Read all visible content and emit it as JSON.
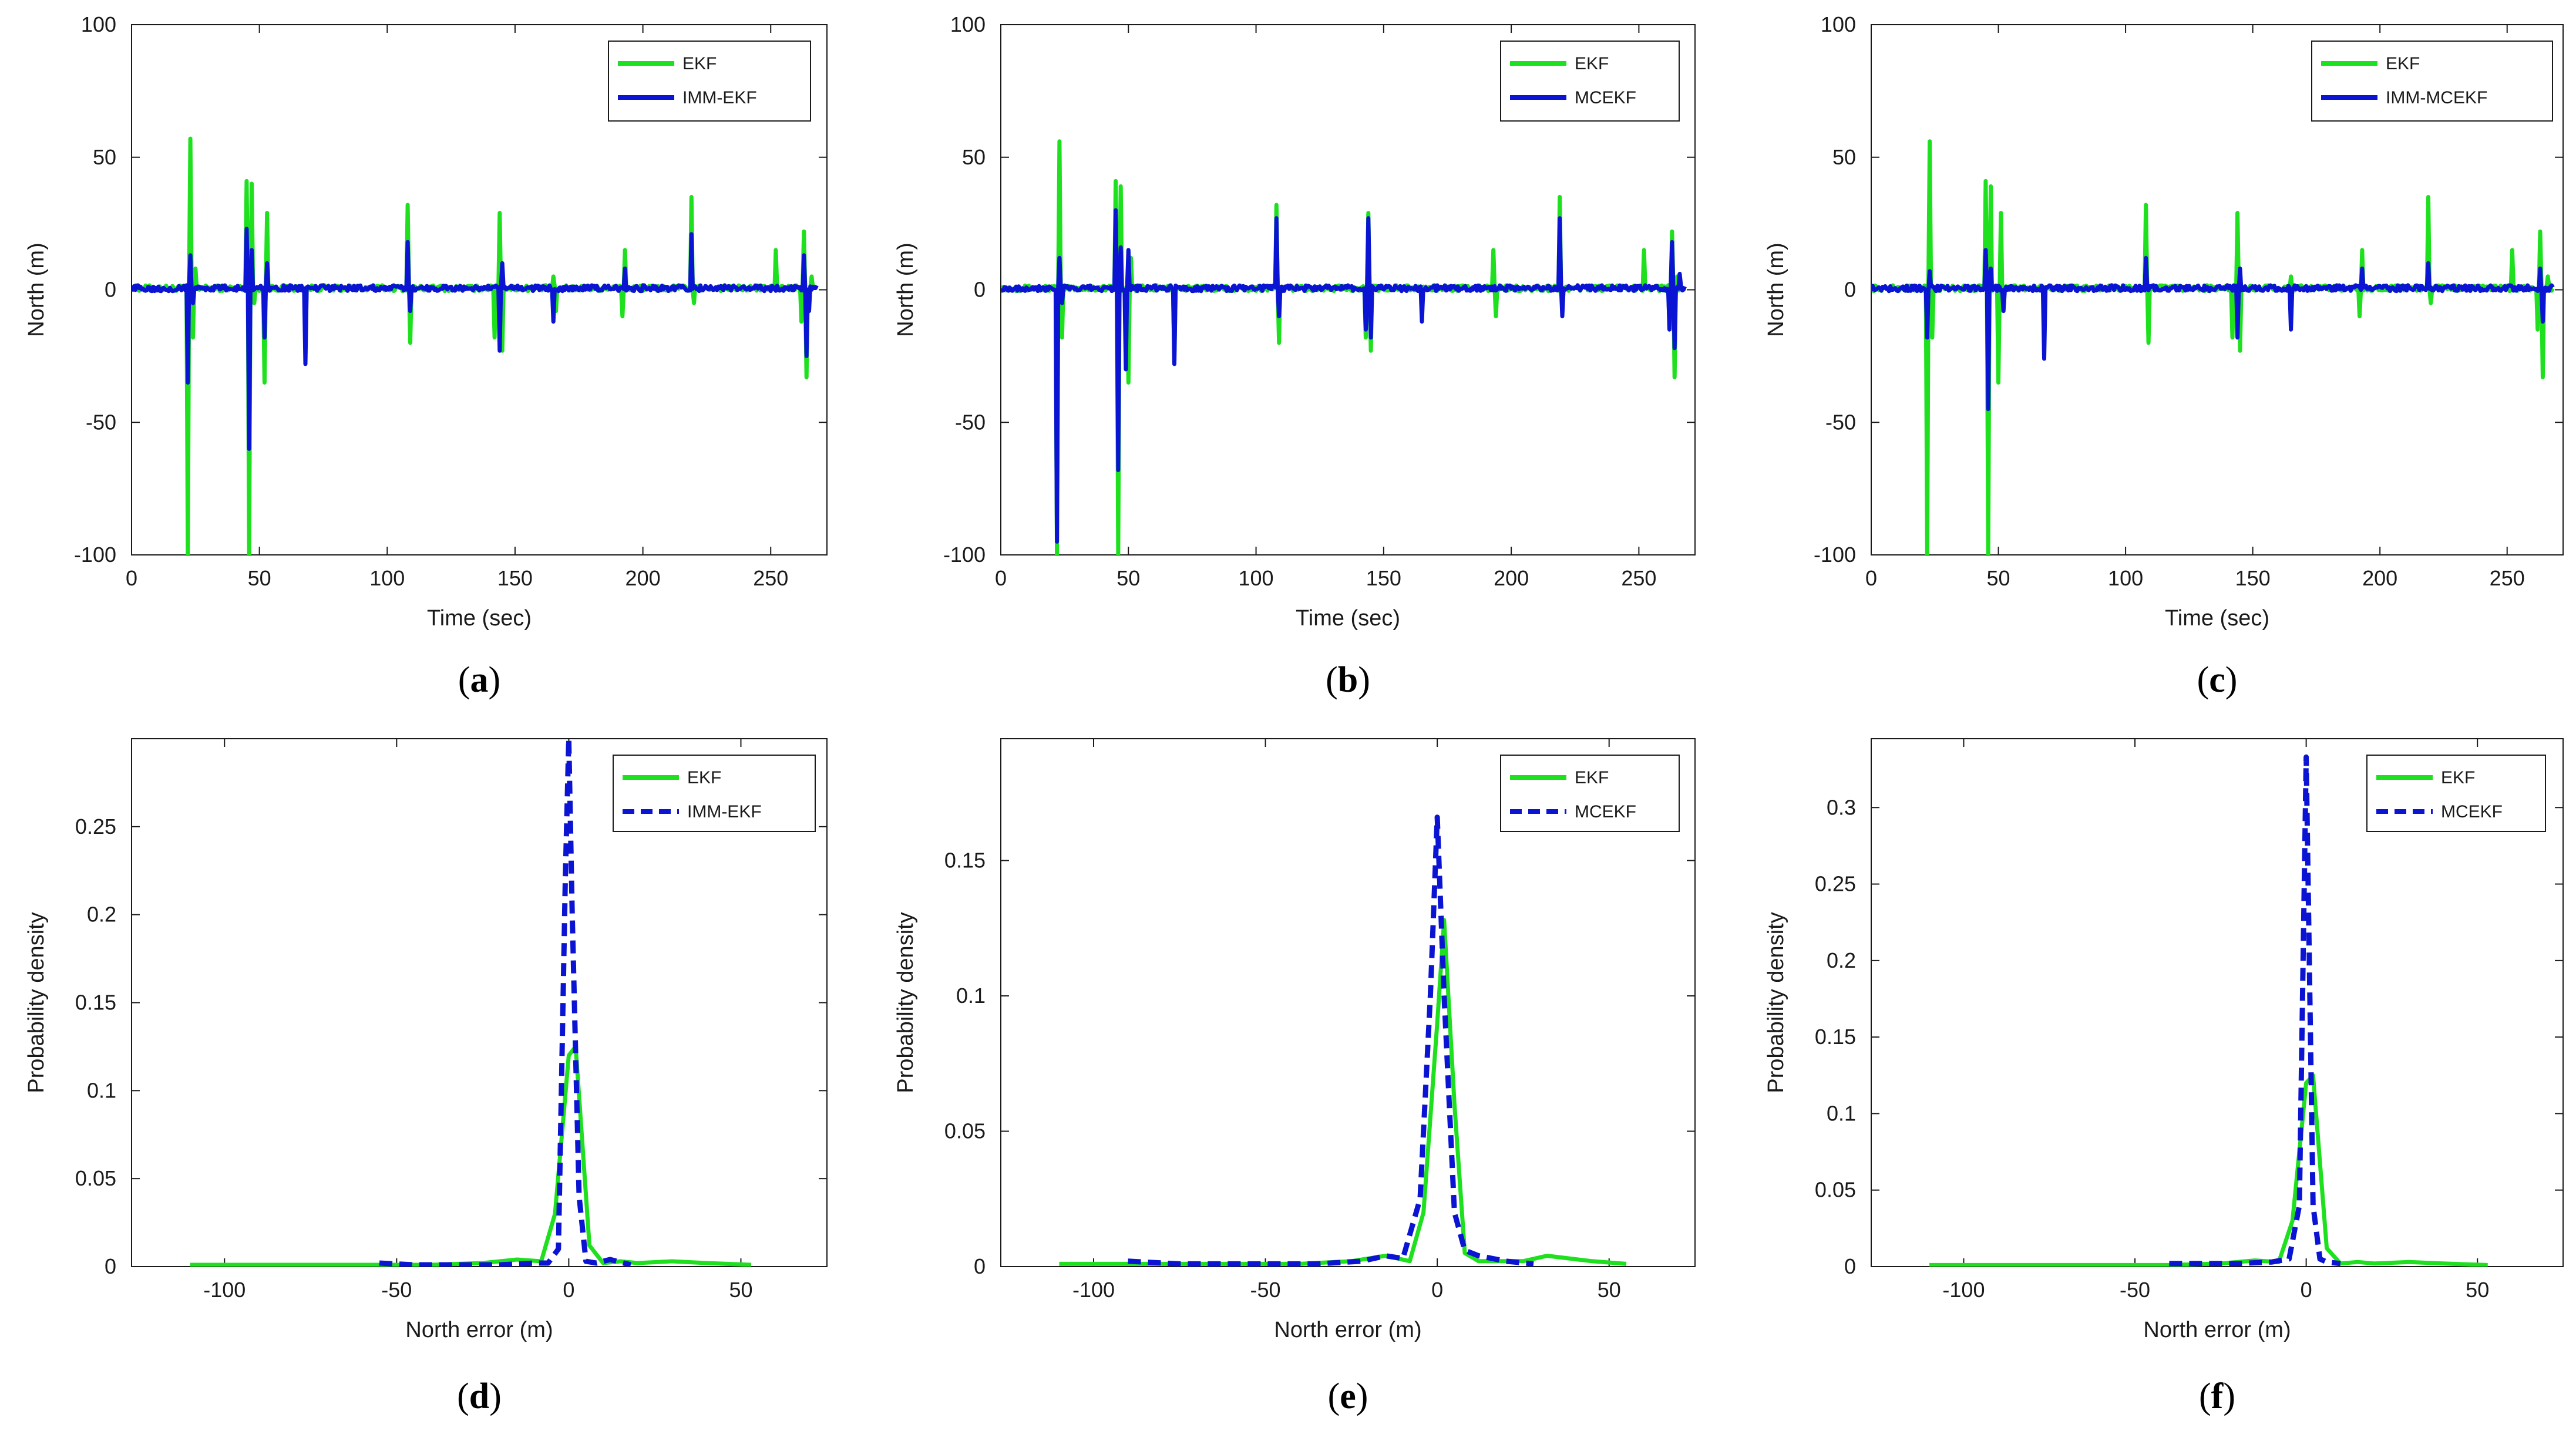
{
  "figure": {
    "panels": [
      "a",
      "b",
      "c",
      "d",
      "e",
      "f"
    ]
  },
  "colors": {
    "ekf": "#1ee01e",
    "filter": "#0a14d2",
    "axis": "#1a1a1a"
  },
  "chart_data": [
    {
      "id": "a",
      "type": "line",
      "caption": "a",
      "xlabel": "Time (sec)",
      "ylabel": "North (m)",
      "xlim": [
        0,
        272
      ],
      "ylim": [
        -100,
        100
      ],
      "xticks": [
        0,
        50,
        100,
        150,
        200,
        250
      ],
      "yticks": [
        -100,
        -50,
        0,
        50,
        100
      ],
      "legend": "top-right",
      "series": [
        {
          "name": "EKF",
          "style": "solid",
          "spikes": [
            [
              22,
              -100
            ],
            [
              23,
              57
            ],
            [
              24,
              -18
            ],
            [
              25,
              8
            ],
            [
              45,
              41
            ],
            [
              46,
              -100
            ],
            [
              47,
              40
            ],
            [
              48,
              -5
            ],
            [
              52,
              -35
            ],
            [
              53,
              29
            ],
            [
              68,
              -15
            ],
            [
              108,
              32
            ],
            [
              109,
              -20
            ],
            [
              142,
              -18
            ],
            [
              144,
              29
            ],
            [
              145,
              -23
            ],
            [
              165,
              5
            ],
            [
              166,
              -8
            ],
            [
              192,
              -10
            ],
            [
              193,
              15
            ],
            [
              219,
              35
            ],
            [
              220,
              -5
            ],
            [
              252,
              15
            ],
            [
              262,
              -12
            ],
            [
              263,
              22
            ],
            [
              264,
              -33
            ],
            [
              266,
              5
            ]
          ]
        },
        {
          "name": "IMM-EKF",
          "style": "solid",
          "spikes": [
            [
              22,
              -35
            ],
            [
              23,
              13
            ],
            [
              24,
              -5
            ],
            [
              45,
              23
            ],
            [
              46,
              -60
            ],
            [
              47,
              15
            ],
            [
              52,
              -18
            ],
            [
              53,
              10
            ],
            [
              68,
              -28
            ],
            [
              108,
              18
            ],
            [
              109,
              -8
            ],
            [
              144,
              -23
            ],
            [
              145,
              10
            ],
            [
              165,
              -12
            ],
            [
              193,
              8
            ],
            [
              219,
              21
            ],
            [
              263,
              13
            ],
            [
              264,
              -25
            ],
            [
              265,
              -8
            ]
          ]
        }
      ]
    },
    {
      "id": "b",
      "type": "line",
      "caption": "b",
      "xlabel": "Time (sec)",
      "ylabel": "North (m)",
      "xlim": [
        0,
        272
      ],
      "ylim": [
        -100,
        100
      ],
      "xticks": [
        0,
        50,
        100,
        150,
        200,
        250
      ],
      "yticks": [
        -100,
        -50,
        0,
        50,
        100
      ],
      "legend": "top-right",
      "series": [
        {
          "name": "EKF",
          "style": "solid",
          "spikes": [
            [
              22,
              -100
            ],
            [
              23,
              56
            ],
            [
              24,
              -18
            ],
            [
              45,
              41
            ],
            [
              46,
              -100
            ],
            [
              47,
              39
            ],
            [
              50,
              -35
            ],
            [
              51,
              12
            ],
            [
              68,
              -25
            ],
            [
              108,
              32
            ],
            [
              109,
              -20
            ],
            [
              143,
              -18
            ],
            [
              144,
              29
            ],
            [
              145,
              -23
            ],
            [
              193,
              15
            ],
            [
              194,
              -10
            ],
            [
              219,
              35
            ],
            [
              220,
              -5
            ],
            [
              252,
              15
            ],
            [
              262,
              -15
            ],
            [
              263,
              22
            ],
            [
              264,
              -33
            ],
            [
              265,
              5
            ]
          ]
        },
        {
          "name": "MCEKF",
          "style": "solid",
          "spikes": [
            [
              22,
              -95
            ],
            [
              23,
              12
            ],
            [
              24,
              -5
            ],
            [
              45,
              30
            ],
            [
              46,
              -68
            ],
            [
              47,
              16
            ],
            [
              49,
              -30
            ],
            [
              50,
              15
            ],
            [
              68,
              -28
            ],
            [
              108,
              27
            ],
            [
              109,
              -10
            ],
            [
              143,
              -15
            ],
            [
              144,
              27
            ],
            [
              145,
              -18
            ],
            [
              165,
              -12
            ],
            [
              219,
              27
            ],
            [
              220,
              -10
            ],
            [
              262,
              -15
            ],
            [
              263,
              18
            ],
            [
              264,
              -22
            ],
            [
              266,
              6
            ]
          ]
        }
      ]
    },
    {
      "id": "c",
      "type": "line",
      "caption": "c",
      "xlabel": "Time (sec)",
      "ylabel": "North (m)",
      "xlim": [
        0,
        272
      ],
      "ylim": [
        -100,
        100
      ],
      "xticks": [
        0,
        50,
        100,
        150,
        200,
        250
      ],
      "yticks": [
        -100,
        -50,
        0,
        50,
        100
      ],
      "legend": "top-right",
      "series": [
        {
          "name": "EKF",
          "style": "solid",
          "spikes": [
            [
              22,
              -100
            ],
            [
              23,
              56
            ],
            [
              24,
              -18
            ],
            [
              45,
              41
            ],
            [
              46,
              -100
            ],
            [
              47,
              39
            ],
            [
              50,
              -35
            ],
            [
              51,
              29
            ],
            [
              68,
              -15
            ],
            [
              108,
              32
            ],
            [
              109,
              -20
            ],
            [
              142,
              -18
            ],
            [
              144,
              29
            ],
            [
              145,
              -23
            ],
            [
              165,
              5
            ],
            [
              192,
              -10
            ],
            [
              193,
              15
            ],
            [
              219,
              35
            ],
            [
              220,
              -5
            ],
            [
              252,
              15
            ],
            [
              262,
              -15
            ],
            [
              263,
              22
            ],
            [
              264,
              -33
            ],
            [
              266,
              5
            ]
          ]
        },
        {
          "name": "IMM-MCEKF",
          "style": "solid",
          "spikes": [
            [
              22,
              -18
            ],
            [
              23,
              7
            ],
            [
              45,
              15
            ],
            [
              46,
              -45
            ],
            [
              47,
              8
            ],
            [
              52,
              -8
            ],
            [
              68,
              -26
            ],
            [
              108,
              12
            ],
            [
              144,
              -18
            ],
            [
              145,
              8
            ],
            [
              165,
              -15
            ],
            [
              193,
              8
            ],
            [
              219,
              10
            ],
            [
              263,
              8
            ],
            [
              264,
              -12
            ]
          ]
        }
      ]
    },
    {
      "id": "d",
      "type": "line",
      "caption": "d",
      "xlabel": "North error (m)",
      "ylabel": "Probability density",
      "xlim": [
        -127,
        75
      ],
      "ylim": [
        0,
        0.3
      ],
      "xticks": [
        -100,
        -50,
        0,
        50
      ],
      "yticks": [
        0,
        0.05,
        0.1,
        0.15,
        0.2,
        0.25
      ],
      "legend": "top-right",
      "series": [
        {
          "name": "EKF",
          "style": "solid",
          "x": [
            -110,
            -95,
            -80,
            -60,
            -40,
            -25,
            -15,
            -8,
            -4,
            0,
            2,
            6,
            10,
            15,
            20,
            30,
            40,
            53
          ],
          "y": [
            0.001,
            0.001,
            0.001,
            0.001,
            0.001,
            0.002,
            0.004,
            0.003,
            0.03,
            0.12,
            0.125,
            0.012,
            0.002,
            0.003,
            0.002,
            0.003,
            0.002,
            0.001
          ]
        },
        {
          "name": "IMM-EKF",
          "style": "dashed",
          "x": [
            -55,
            -45,
            -30,
            -20,
            -10,
            -6,
            -3,
            -1,
            0,
            1,
            3,
            5,
            8,
            12,
            18
          ],
          "y": [
            0.002,
            0.001,
            0.001,
            0.001,
            0.002,
            0.002,
            0.01,
            0.22,
            0.3,
            0.2,
            0.04,
            0.003,
            0.002,
            0.004,
            0.001
          ]
        }
      ]
    },
    {
      "id": "e",
      "type": "line",
      "caption": "e",
      "xlabel": "North error (m)",
      "ylabel": "Probability density",
      "xlim": [
        -127,
        75
      ],
      "ylim": [
        0,
        0.195
      ],
      "xticks": [
        -100,
        -50,
        0,
        50
      ],
      "yticks": [
        0,
        0.05,
        0.1,
        0.15
      ],
      "legend": "top-right",
      "series": [
        {
          "name": "EKF",
          "style": "solid",
          "x": [
            -110,
            -95,
            -80,
            -60,
            -40,
            -25,
            -15,
            -8,
            -4,
            0,
            2,
            5,
            8,
            12,
            18,
            25,
            32,
            45,
            55
          ],
          "y": [
            0.001,
            0.001,
            0.001,
            0.001,
            0.001,
            0.002,
            0.004,
            0.002,
            0.02,
            0.09,
            0.128,
            0.06,
            0.005,
            0.002,
            0.002,
            0.002,
            0.004,
            0.002,
            0.001
          ]
        },
        {
          "name": "MCEKF",
          "style": "dashed",
          "x": [
            -90,
            -75,
            -55,
            -35,
            -22,
            -15,
            -10,
            -5,
            -2,
            0,
            2,
            5,
            8,
            12,
            20,
            28
          ],
          "y": [
            0.002,
            0.001,
            0.001,
            0.001,
            0.002,
            0.004,
            0.003,
            0.025,
            0.1,
            0.166,
            0.1,
            0.02,
            0.006,
            0.004,
            0.002,
            0.001
          ]
        }
      ]
    },
    {
      "id": "f",
      "type": "line",
      "caption": "f",
      "xlabel": "North error (m)",
      "ylabel": "Probability density",
      "xlim": [
        -127,
        75
      ],
      "ylim": [
        0,
        0.345
      ],
      "xticks": [
        -100,
        -50,
        0,
        50
      ],
      "yticks": [
        0,
        0.05,
        0.1,
        0.15,
        0.2,
        0.25,
        0.3
      ],
      "legend": "top-right",
      "series": [
        {
          "name": "EKF",
          "style": "solid",
          "x": [
            -110,
            -95,
            -80,
            -60,
            -40,
            -25,
            -15,
            -8,
            -4,
            0,
            2,
            6,
            10,
            15,
            20,
            30,
            40,
            53
          ],
          "y": [
            0.001,
            0.001,
            0.001,
            0.001,
            0.001,
            0.002,
            0.004,
            0.003,
            0.03,
            0.12,
            0.125,
            0.012,
            0.002,
            0.003,
            0.002,
            0.003,
            0.002,
            0.001
          ]
        },
        {
          "name": "MCEKF",
          "style": "dashed",
          "x": [
            -40,
            -30,
            -20,
            -10,
            -5,
            -2,
            0,
            2,
            4,
            6,
            10
          ],
          "y": [
            0.002,
            0.002,
            0.002,
            0.003,
            0.005,
            0.04,
            0.333,
            0.04,
            0.005,
            0.003,
            0.002
          ]
        }
      ]
    }
  ]
}
